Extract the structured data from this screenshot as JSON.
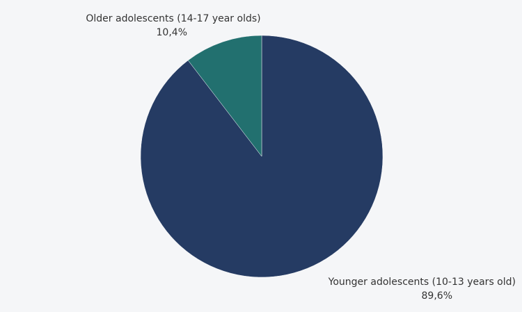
{
  "chart_data": {
    "type": "pie",
    "categories": [
      "Younger adolescents (10-13 years old)",
      "Older adolescents (14-17 year olds)"
    ],
    "values": [
      89.6,
      10.4
    ],
    "value_labels": [
      "89,6%",
      "10,4%"
    ],
    "colors": [
      "#253b63",
      "#22706f"
    ]
  }
}
